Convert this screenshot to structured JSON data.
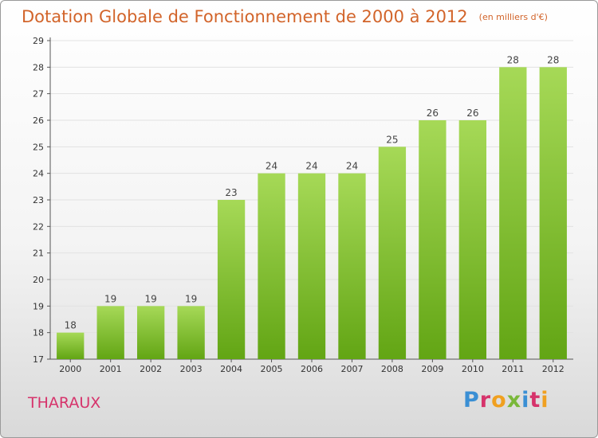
{
  "header": {
    "title": "Dotation Globale de Fonctionnement de 2000 à 2012",
    "subtitle": "(en milliers d'€)"
  },
  "footer": {
    "commune": "THARAUX",
    "logo_text": "Proxiti"
  },
  "colors": {
    "title": "#d2642a",
    "commune": "#d6336b",
    "bar_light": "#a6d957",
    "bar_dark": "#62a514",
    "axis": "#555555",
    "grid": "#e2e2e2",
    "logo": [
      "#3a8fd4",
      "#d6336b",
      "#f0a020",
      "#7ab83a",
      "#3a8fd4",
      "#d6336b",
      "#f0a020"
    ]
  },
  "chart_data": {
    "type": "bar",
    "title": "Dotation Globale de Fonctionnement de 2000 à 2012",
    "subtitle": "(en milliers d'€)",
    "xlabel": "",
    "ylabel": "",
    "categories": [
      "2000",
      "2001",
      "2002",
      "2003",
      "2004",
      "2005",
      "2006",
      "2007",
      "2008",
      "2009",
      "2010",
      "2011",
      "2012"
    ],
    "values": [
      18,
      19,
      19,
      19,
      23,
      24,
      24,
      24,
      25,
      26,
      26,
      28,
      28
    ],
    "ylim": [
      17,
      29
    ],
    "yticks": [
      17,
      18,
      19,
      20,
      21,
      22,
      23,
      24,
      25,
      26,
      27,
      28,
      29
    ],
    "grid": true,
    "data_labels": true
  }
}
